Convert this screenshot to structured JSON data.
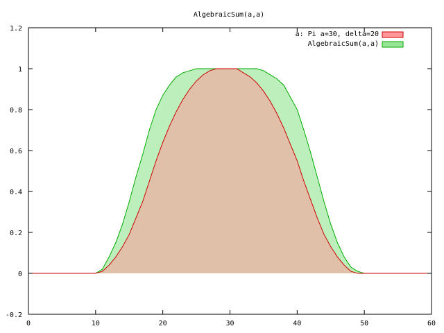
{
  "chart_data": {
    "type": "area",
    "title": "AlgebraicSum(a,a)",
    "xlabel": "",
    "ylabel": "",
    "xlim": [
      0,
      60
    ],
    "ylim": [
      -0.2,
      1.2
    ],
    "xticks": [
      0,
      10,
      20,
      30,
      40,
      50,
      60
    ],
    "yticks": [
      -0.2,
      0,
      0.2,
      0.4,
      0.6,
      0.8,
      1,
      1.2
    ],
    "xtick_labels": [
      "0",
      "10",
      "20",
      "30",
      "40",
      "50",
      "60"
    ],
    "ytick_labels": [
      "-0.2",
      "0",
      "0.2",
      "0.4",
      "0.6",
      "0.8",
      "1",
      "1.2"
    ],
    "grid": false,
    "legend_position": "top-right",
    "series": [
      {
        "name": "a: Pi a=30, delta=20",
        "stroke": "#cc0000",
        "fill": "#ff9999",
        "x": [
          0,
          10,
          11,
          12,
          13,
          14,
          15,
          16,
          17,
          18,
          19,
          20,
          21,
          22,
          23,
          24,
          25,
          26,
          27,
          28,
          29,
          30,
          31,
          32,
          33,
          34,
          35,
          36,
          37,
          38,
          39,
          40,
          41,
          42,
          43,
          44,
          45,
          46,
          47,
          48,
          49,
          50,
          60
        ],
        "y": [
          0,
          0,
          0.01,
          0.04,
          0.08,
          0.13,
          0.19,
          0.27,
          0.35,
          0.45,
          0.55,
          0.64,
          0.72,
          0.79,
          0.85,
          0.9,
          0.94,
          0.97,
          0.99,
          1.0,
          1.0,
          1.0,
          1.0,
          0.98,
          0.96,
          0.93,
          0.89,
          0.84,
          0.78,
          0.71,
          0.63,
          0.55,
          0.45,
          0.36,
          0.27,
          0.19,
          0.13,
          0.08,
          0.04,
          0.01,
          0.0,
          0,
          0
        ]
      },
      {
        "name": "AlgebraicSum(a,a)",
        "stroke": "#00aa00",
        "fill": "#99e699",
        "x": [
          0,
          10,
          11,
          12,
          13,
          14,
          15,
          16,
          17,
          18,
          19,
          20,
          21,
          22,
          23,
          24,
          25,
          26,
          27,
          28,
          29,
          30,
          31,
          32,
          33,
          34,
          35,
          36,
          37,
          38,
          39,
          40,
          41,
          42,
          43,
          44,
          45,
          46,
          47,
          48,
          49,
          50,
          60
        ],
        "y": [
          0,
          0,
          0.02,
          0.08,
          0.15,
          0.24,
          0.35,
          0.47,
          0.58,
          0.7,
          0.8,
          0.87,
          0.92,
          0.96,
          0.98,
          0.99,
          1.0,
          1.0,
          1.0,
          1.0,
          1.0,
          1.0,
          1.0,
          1.0,
          1.0,
          1.0,
          0.99,
          0.97,
          0.95,
          0.92,
          0.86,
          0.8,
          0.7,
          0.59,
          0.47,
          0.35,
          0.24,
          0.15,
          0.08,
          0.03,
          0.01,
          0,
          0
        ]
      }
    ]
  }
}
